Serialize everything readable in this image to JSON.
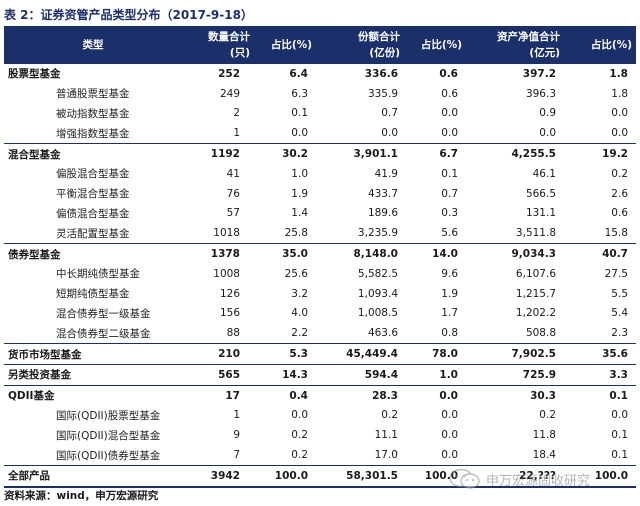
{
  "caption": "表 2：证券资管产品类型分布（2017-9-18）",
  "header": {
    "type": "类型",
    "count_line1": "数量合计",
    "count_line2": "(只)",
    "count_pct": "占比(%)",
    "share_line1": "份额合计",
    "share_line2": "(亿份)",
    "share_pct": "占比(%)",
    "nav_line1": "资产净值合计",
    "nav_line2": "(亿元)",
    "nav_pct": "占比(%)"
  },
  "rows": [
    {
      "level": "major",
      "name": "股票型基金",
      "count": "252",
      "count_pct": "6.4",
      "share": "336.6",
      "share_pct": "0.6",
      "nav": "397.2",
      "nav_pct": "1.8"
    },
    {
      "level": "sub",
      "name": "普通股票型基金",
      "count": "249",
      "count_pct": "6.3",
      "share": "335.9",
      "share_pct": "0.6",
      "nav": "396.3",
      "nav_pct": "1.8"
    },
    {
      "level": "sub",
      "name": "被动指数型基金",
      "count": "2",
      "count_pct": "0.1",
      "share": "0.7",
      "share_pct": "0.0",
      "nav": "0.9",
      "nav_pct": "0.0"
    },
    {
      "level": "sub",
      "name": "增强指数型基金",
      "count": "1",
      "count_pct": "0.0",
      "share": "0.0",
      "share_pct": "0.0",
      "nav": "0.0",
      "nav_pct": "0.0"
    },
    {
      "level": "major",
      "name": "混合型基金",
      "count": "1192",
      "count_pct": "30.2",
      "share": "3,901.1",
      "share_pct": "6.7",
      "nav": "4,255.5",
      "nav_pct": "19.2"
    },
    {
      "level": "sub",
      "name": "偏股混合型基金",
      "count": "41",
      "count_pct": "1.0",
      "share": "41.9",
      "share_pct": "0.1",
      "nav": "46.1",
      "nav_pct": "0.2"
    },
    {
      "level": "sub",
      "name": "平衡混合型基金",
      "count": "76",
      "count_pct": "1.9",
      "share": "433.7",
      "share_pct": "0.7",
      "nav": "566.5",
      "nav_pct": "2.6"
    },
    {
      "level": "sub",
      "name": "偏债混合型基金",
      "count": "57",
      "count_pct": "1.4",
      "share": "189.6",
      "share_pct": "0.3",
      "nav": "131.1",
      "nav_pct": "0.6"
    },
    {
      "level": "sub",
      "name": "灵活配置型基金",
      "count": "1018",
      "count_pct": "25.8",
      "share": "3,235.9",
      "share_pct": "5.6",
      "nav": "3,511.8",
      "nav_pct": "15.8"
    },
    {
      "level": "major",
      "name": "债券型基金",
      "count": "1378",
      "count_pct": "35.0",
      "share": "8,148.0",
      "share_pct": "14.0",
      "nav": "9,034.3",
      "nav_pct": "40.7"
    },
    {
      "level": "sub",
      "name": "中长期纯债型基金",
      "count": "1008",
      "count_pct": "25.6",
      "share": "5,582.5",
      "share_pct": "9.6",
      "nav": "6,107.6",
      "nav_pct": "27.5"
    },
    {
      "level": "sub",
      "name": "短期纯债型基金",
      "count": "126",
      "count_pct": "3.2",
      "share": "1,093.4",
      "share_pct": "1.9",
      "nav": "1,215.7",
      "nav_pct": "5.5"
    },
    {
      "level": "sub",
      "name": "混合债券型一级基金",
      "count": "156",
      "count_pct": "4.0",
      "share": "1,008.5",
      "share_pct": "1.7",
      "nav": "1,202.2",
      "nav_pct": "5.4"
    },
    {
      "level": "sub",
      "name": "混合债券型二级基金",
      "count": "88",
      "count_pct": "2.2",
      "share": "463.6",
      "share_pct": "0.8",
      "nav": "508.8",
      "nav_pct": "2.3"
    },
    {
      "level": "major",
      "name": "货币市场型基金",
      "count": "210",
      "count_pct": "5.3",
      "share": "45,449.4",
      "share_pct": "78.0",
      "nav": "7,902.5",
      "nav_pct": "35.6"
    },
    {
      "level": "major",
      "name": "另类投资基金",
      "count": "565",
      "count_pct": "14.3",
      "share": "594.4",
      "share_pct": "1.0",
      "nav": "725.9",
      "nav_pct": "3.3"
    },
    {
      "level": "major",
      "name": "QDII基金",
      "count": "17",
      "count_pct": "0.4",
      "share": "28.3",
      "share_pct": "0.0",
      "nav": "30.3",
      "nav_pct": "0.1"
    },
    {
      "level": "sub",
      "name": "国际(QDII)股票型基金",
      "count": "1",
      "count_pct": "0.0",
      "share": "0.2",
      "share_pct": "0.0",
      "nav": "0.2",
      "nav_pct": "0.0"
    },
    {
      "level": "sub",
      "name": "国际(QDII)混合型基金",
      "count": "9",
      "count_pct": "0.2",
      "share": "11.1",
      "share_pct": "0.0",
      "nav": "11.8",
      "nav_pct": "0.1"
    },
    {
      "level": "sub",
      "name": "国际(QDII)债券型基金",
      "count": "7",
      "count_pct": "0.2",
      "share": "17.0",
      "share_pct": "0.0",
      "nav": "18.4",
      "nav_pct": "0.1"
    },
    {
      "level": "total",
      "name": "全部产品",
      "count": "3942",
      "count_pct": "100.0",
      "share": "58,301.5",
      "share_pct": "100.0",
      "nav": "22,???",
      "nav_pct": "100.0"
    }
  ],
  "source": "资料来源：wind，申万宏源研究",
  "watermark": "申万宏源固收研究",
  "colors": {
    "header_bg": "#1b2f6b",
    "caption": "#1b2f6b"
  }
}
